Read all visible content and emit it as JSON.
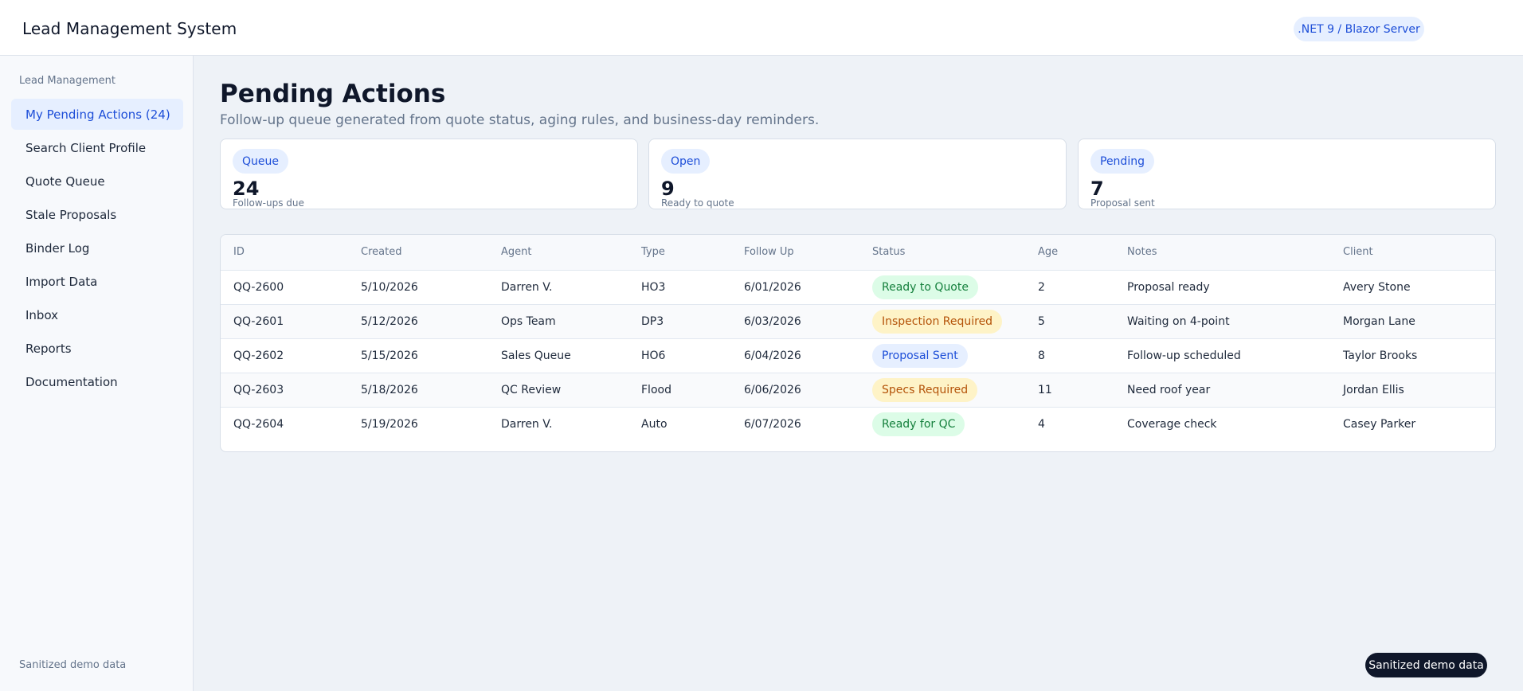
{
  "header": {
    "title": "Lead Management System",
    "stack_badge": ".NET 9 / Blazor Server"
  },
  "sidebar": {
    "heading": "Lead Management",
    "items": [
      {
        "label": "My Pending Actions (24)",
        "active": true
      },
      {
        "label": "Search Client Profile"
      },
      {
        "label": "Quote Queue"
      },
      {
        "label": "Stale Proposals"
      },
      {
        "label": "Binder Log"
      },
      {
        "label": "Import Data"
      },
      {
        "label": "Inbox"
      },
      {
        "label": "Reports"
      },
      {
        "label": "Documentation"
      }
    ],
    "footer": "Sanitized demo data"
  },
  "main": {
    "title": "Pending Actions",
    "subtitle": "Follow-up queue generated from quote status, aging rules, and business-day reminders.",
    "cards": [
      {
        "chip": "Queue",
        "value": "24",
        "caption": "Follow-ups due"
      },
      {
        "chip": "Open",
        "value": "9",
        "caption": "Ready to quote"
      },
      {
        "chip": "Pending",
        "value": "7",
        "caption": "Proposal sent"
      }
    ],
    "table": {
      "columns": [
        "ID",
        "Created",
        "Agent",
        "Type",
        "Follow Up",
        "Status",
        "Age",
        "Notes",
        "Client"
      ],
      "rows": [
        {
          "id": "QQ-2600",
          "created": "5/10/2026",
          "agent": "Darren V.",
          "type": "HO3",
          "follow_up": "6/01/2026",
          "status": "Ready to Quote",
          "age": "2",
          "notes": "Proposal ready",
          "client": "Avery Stone"
        },
        {
          "id": "QQ-2601",
          "created": "5/12/2026",
          "agent": "Ops Team",
          "type": "DP3",
          "follow_up": "6/03/2026",
          "status": "Inspection Required",
          "age": "5",
          "notes": "Waiting on 4-point",
          "client": "Morgan Lane"
        },
        {
          "id": "QQ-2602",
          "created": "5/15/2026",
          "agent": "Sales Queue",
          "type": "HO6",
          "follow_up": "6/04/2026",
          "status": "Proposal Sent",
          "age": "8",
          "notes": "Follow-up scheduled",
          "client": "Taylor Brooks"
        },
        {
          "id": "QQ-2603",
          "created": "5/18/2026",
          "agent": "QC Review",
          "type": "Flood",
          "follow_up": "6/06/2026",
          "status": "Specs Required",
          "age": "11",
          "notes": "Need roof year",
          "client": "Jordan Ellis"
        },
        {
          "id": "QQ-2604",
          "created": "5/19/2026",
          "agent": "Darren V.",
          "type": "Auto",
          "follow_up": "6/07/2026",
          "status": "Ready for QC",
          "age": "4",
          "notes": "Coverage check",
          "client": "Casey Parker"
        }
      ]
    }
  },
  "demo_badge": "Sanitized demo data",
  "colors": {
    "accent": "#1d4ed8",
    "status_green": "#15803d",
    "status_amber": "#b45309",
    "status_blue": "#1d4ed8"
  }
}
